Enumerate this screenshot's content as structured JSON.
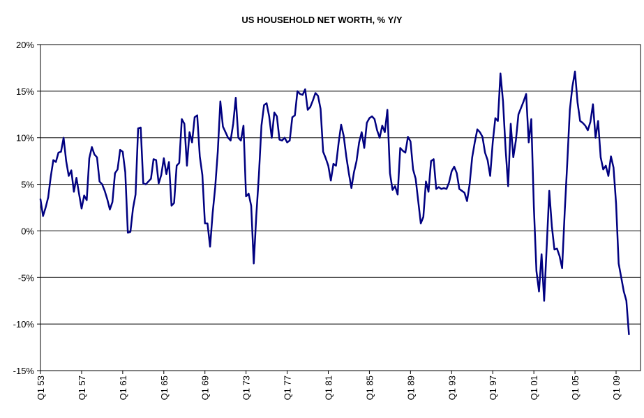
{
  "chart_data": {
    "type": "line",
    "title": "US HOUSEHOLD NET WORTH, % Y/Y",
    "xlabel": "",
    "ylabel": "",
    "ylim": [
      -15,
      20
    ],
    "yticks": [
      -15,
      -10,
      -5,
      0,
      5,
      10,
      15,
      20
    ],
    "ytick_labels": [
      "-15%",
      "-10%",
      "-5%",
      "0%",
      "5%",
      "10%",
      "15%",
      "20%"
    ],
    "x_start": "Q1 53",
    "xticks": [
      "Q1 53",
      "Q1 57",
      "Q1 61",
      "Q1 65",
      "Q1 69",
      "Q1 73",
      "Q1 77",
      "Q1 81",
      "Q1 85",
      "Q1 89",
      "Q1 93",
      "Q1 97",
      "Q1 01",
      "Q1 05",
      "Q1 09"
    ],
    "grid": "horizontal",
    "legend": "none",
    "line_color": "#000080",
    "series": [
      {
        "values": [
          3.4,
          1.6,
          2.5,
          3.6,
          5.8,
          7.6,
          7.4,
          8.4,
          8.5,
          10.0,
          7.5,
          5.9,
          6.5,
          4.2,
          5.7,
          4.0,
          2.4,
          3.8,
          3.3,
          7.8,
          9.0,
          8.2,
          7.9,
          5.3,
          5.0,
          4.3,
          3.4,
          2.3,
          3.1,
          6.2,
          6.6,
          8.7,
          8.5,
          6.3,
          -0.2,
          -0.1,
          2.4,
          3.9,
          11.0,
          11.1,
          5.1,
          5.0,
          5.3,
          5.6,
          7.7,
          7.6,
          5.1,
          6.0,
          7.8,
          6.1,
          7.4,
          2.7,
          3.0,
          7.0,
          7.3,
          12.0,
          11.5,
          7.0,
          10.6,
          9.5,
          12.2,
          12.4,
          8.0,
          6.0,
          0.8,
          0.8,
          -1.7,
          1.9,
          4.7,
          8.5,
          13.9,
          11.2,
          10.6,
          10.0,
          9.7,
          11.5,
          14.3,
          10.0,
          9.7,
          11.3,
          3.7,
          4.0,
          2.7,
          -3.5,
          1.7,
          6.0,
          11.3,
          13.5,
          13.7,
          12.3,
          10.0,
          12.7,
          12.3,
          9.8,
          9.7,
          10.0,
          9.5,
          9.7,
          12.2,
          12.4,
          15.0,
          14.7,
          14.6,
          15.2,
          13.0,
          13.3,
          14.0,
          14.8,
          14.5,
          13.1,
          8.5,
          7.8,
          7.0,
          5.4,
          7.2,
          7.0,
          9.4,
          11.4,
          10.2,
          8.0,
          6.2,
          4.6,
          6.3,
          7.5,
          9.5,
          10.6,
          8.9,
          11.6,
          12.1,
          12.3,
          12.0,
          10.8,
          10.0,
          11.3,
          10.6,
          13.0,
          6.2,
          4.4,
          4.8,
          3.9,
          8.9,
          8.6,
          8.4,
          10.1,
          9.6,
          6.6,
          5.6,
          3.2,
          0.8,
          1.5,
          5.3,
          4.2,
          7.5,
          7.7,
          4.5,
          4.7,
          4.5,
          4.6,
          4.5,
          5.2,
          6.4,
          6.9,
          6.2,
          4.5,
          4.3,
          4.1,
          3.2,
          5.0,
          7.9,
          9.5,
          10.9,
          10.6,
          10.1,
          8.4,
          7.6,
          5.9,
          9.5,
          12.1,
          11.8,
          16.9,
          13.9,
          8.8,
          4.8,
          11.5,
          7.9,
          9.7,
          12.5,
          13.2,
          13.9,
          14.7,
          9.5,
          12.0,
          2.6,
          -4.3,
          -6.5,
          -2.5,
          -7.5,
          -1.7,
          4.3,
          0.5,
          -2.0,
          -1.9,
          -2.7,
          -4.0,
          2.0,
          7.3,
          13.0,
          15.5,
          17.1,
          13.8,
          11.8,
          11.6,
          11.3,
          10.8,
          11.7,
          13.6,
          10.0,
          11.8,
          7.9,
          6.6,
          7.0,
          5.9,
          8.0,
          6.8,
          2.9,
          -3.5,
          -5.0,
          -6.5,
          -7.5,
          -11.1
        ]
      }
    ]
  }
}
